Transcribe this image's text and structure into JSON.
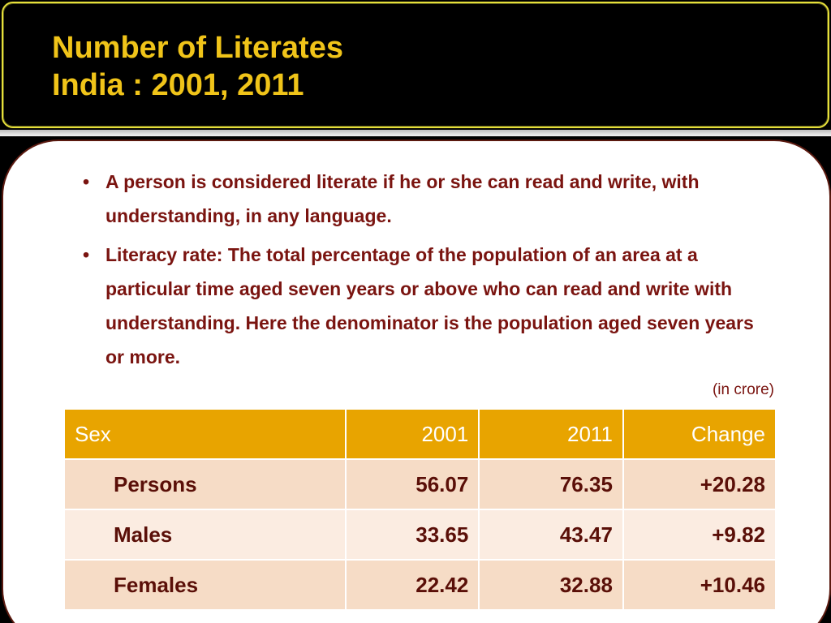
{
  "title": {
    "line1": "Number of Literates",
    "line2": "India : 2001, 2011"
  },
  "bullets": [
    {
      "marker": "•",
      "text": "A person is considered literate if he or she can read and write, with  understanding, in any language."
    },
    {
      "marker": "•",
      "text": "Literacy rate: The total percentage of the population of an area at a particular time aged seven years or above who can read and write with understanding. Here the denominator is the population aged seven years or more."
    }
  ],
  "unit_note": "(in crore)",
  "table": {
    "headers": [
      "Sex",
      "2001",
      "2011",
      "Change"
    ],
    "rows": [
      [
        "Persons",
        "56.07",
        "76.35",
        "+20.28"
      ],
      [
        "Males",
        "33.65",
        "43.47",
        "+9.82"
      ],
      [
        "Females",
        "22.42",
        "32.88",
        "+10.46"
      ]
    ]
  },
  "colors": {
    "title": "#f0c419",
    "title_border": "#e6df3a",
    "body_text": "#7a1410",
    "table_header": "#e8a400",
    "table_row_odd": "#f6dcc6",
    "table_row_even": "#fbece1"
  }
}
